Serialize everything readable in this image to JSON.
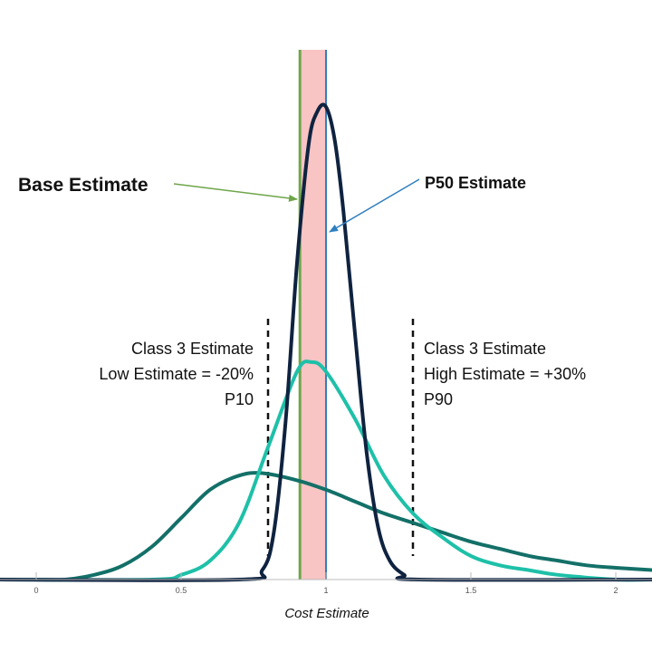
{
  "chart_data": {
    "type": "line",
    "xlabel": "Cost Estimate",
    "xlim": [
      0,
      2.13
    ],
    "x_ticks": [
      "0",
      "0.5",
      "1",
      "1.5",
      "2"
    ],
    "series": [
      {
        "name": "",
        "color": "#0f2340",
        "x": [
          0.7,
          0.78,
          0.82,
          0.86,
          0.9,
          0.94,
          0.97,
          1.0,
          1.03,
          1.06,
          1.1,
          1.14,
          1.18,
          1.22,
          1.27,
          1.32
        ],
        "y": [
          0.0,
          0.02,
          0.1,
          0.33,
          0.67,
          0.92,
          0.99,
          1.0,
          0.93,
          0.78,
          0.52,
          0.27,
          0.11,
          0.04,
          0.01,
          0.0
        ]
      },
      {
        "name": "",
        "color": "#1ec0a8",
        "x": [
          0.4,
          0.5,
          0.6,
          0.7,
          0.8,
          0.9,
          0.95,
          1.0,
          1.1,
          1.2,
          1.3,
          1.4,
          1.5,
          1.6,
          1.7,
          1.8,
          2.0,
          2.13
        ],
        "y": [
          0.0,
          0.01,
          0.04,
          0.12,
          0.28,
          0.44,
          0.46,
          0.44,
          0.34,
          0.22,
          0.14,
          0.09,
          0.05,
          0.03,
          0.02,
          0.01,
          0.0,
          0.0
        ]
      },
      {
        "name": "",
        "color": "#137068",
        "x": [
          0.0,
          0.1,
          0.2,
          0.3,
          0.4,
          0.5,
          0.6,
          0.7,
          0.78,
          0.9,
          1.0,
          1.1,
          1.2,
          1.3,
          1.4,
          1.5,
          1.6,
          1.7,
          1.8,
          1.9,
          2.0,
          2.13
        ],
        "y": [
          0.0,
          0.0,
          0.01,
          0.03,
          0.07,
          0.13,
          0.19,
          0.22,
          0.225,
          0.21,
          0.19,
          0.165,
          0.14,
          0.12,
          0.1,
          0.08,
          0.065,
          0.05,
          0.04,
          0.03,
          0.025,
          0.02
        ]
      }
    ],
    "vertical_lines": [
      {
        "x": 0.91,
        "color": "#6ea54a",
        "style": "solid",
        "label": "Base Estimate"
      },
      {
        "x": 1.0,
        "color": "#2f7fc0",
        "style": "solid",
        "label": "P50 Estimate"
      },
      {
        "x": 0.8,
        "color": "#111111",
        "style": "dashed",
        "label": "P10"
      },
      {
        "x": 1.3,
        "color": "#111111",
        "style": "dashed",
        "label": "P90"
      }
    ],
    "shaded_band": {
      "x": [
        0.91,
        1.0
      ],
      "color": "#f8c4c4"
    },
    "annotations": {
      "base": "Base Estimate",
      "p50": "P50 Estimate",
      "low": [
        "Class 3 Estimate",
        "Low Estimate = -20%",
        "P10"
      ],
      "high": [
        "Class 3 Estimate",
        "High Estimate = +30%",
        "P90"
      ]
    }
  }
}
